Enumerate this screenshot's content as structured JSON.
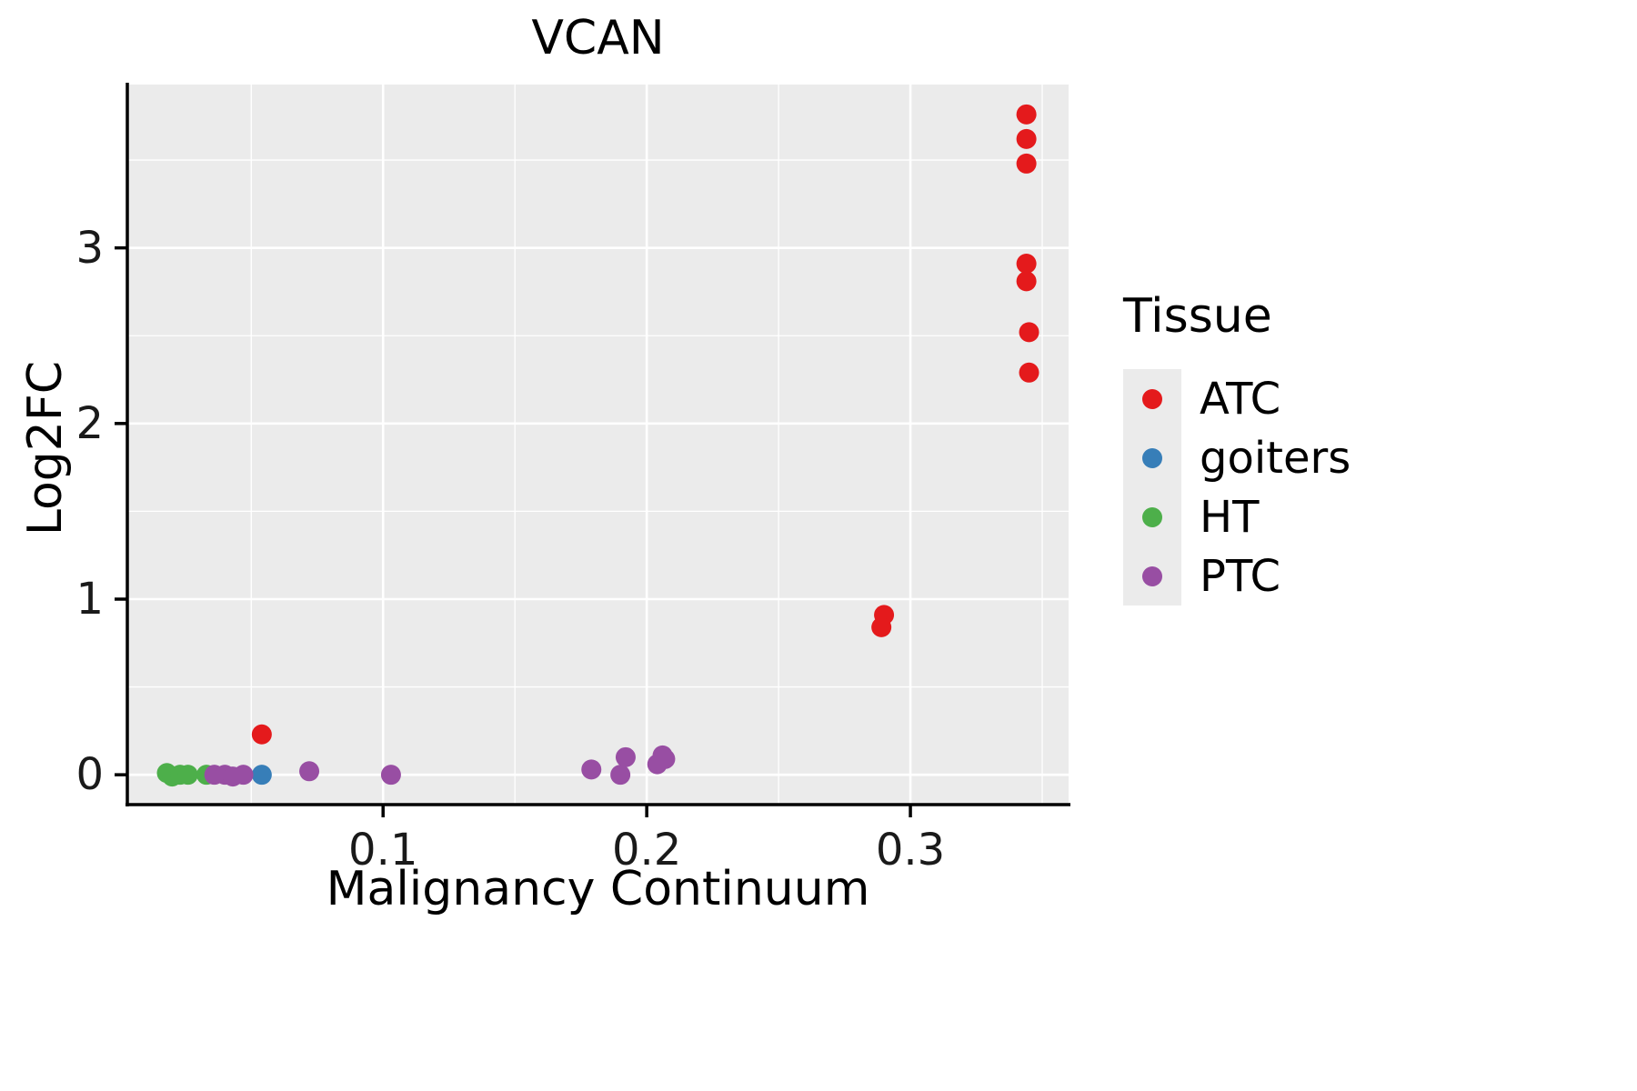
{
  "figure": {
    "title": "VCAN",
    "x_label": "Malignancy Continuum",
    "y_label": "Log2FC"
  },
  "legend": {
    "title": "Tissue",
    "key_background": "#EBEBEB",
    "entries": [
      {
        "label": "ATC",
        "color": "#E41A1C"
      },
      {
        "label": "goiters",
        "color": "#377EB8"
      },
      {
        "label": "HT",
        "color": "#4DAF4A"
      },
      {
        "label": "PTC",
        "color": "#984EA3"
      }
    ]
  },
  "chart_data": {
    "type": "scatter",
    "title": "VCAN",
    "xlabel": "Malignancy Continuum",
    "ylabel": "Log2FC",
    "xlim": [
      0.003,
      0.36
    ],
    "ylim": [
      -0.17,
      3.93
    ],
    "x_ticks": [
      0.1,
      0.2,
      0.3
    ],
    "x_minor_ticks": [
      0.05,
      0.15,
      0.25,
      0.35
    ],
    "y_ticks": [
      0,
      1,
      2,
      3
    ],
    "y_minor_ticks": [
      0.5,
      1.5,
      2.5,
      3.5
    ],
    "panel_background": "#EBEBEB",
    "grid_color": "#FFFFFF",
    "axis_color": "#000000",
    "point_radius": 11,
    "legend_position": "right",
    "grid": true,
    "series": [
      {
        "name": "ATC",
        "color": "#E41A1C",
        "points": [
          [
            0.344,
            3.76
          ],
          [
            0.344,
            3.62
          ],
          [
            0.344,
            3.48
          ],
          [
            0.344,
            2.91
          ],
          [
            0.344,
            2.81
          ],
          [
            0.345,
            2.52
          ],
          [
            0.345,
            2.29
          ],
          [
            0.29,
            0.91
          ],
          [
            0.289,
            0.84
          ],
          [
            0.054,
            0.23
          ]
        ]
      },
      {
        "name": "goiters",
        "color": "#377EB8",
        "points": [
          [
            0.054,
            0.0
          ]
        ]
      },
      {
        "name": "HT",
        "color": "#4DAF4A",
        "points": [
          [
            0.018,
            0.01
          ],
          [
            0.02,
            -0.01
          ],
          [
            0.023,
            0.0
          ],
          [
            0.026,
            0.0
          ],
          [
            0.033,
            0.0
          ]
        ]
      },
      {
        "name": "PTC",
        "color": "#984EA3",
        "points": [
          [
            0.036,
            0.0
          ],
          [
            0.04,
            0.0
          ],
          [
            0.043,
            -0.01
          ],
          [
            0.047,
            0.0
          ],
          [
            0.072,
            0.02
          ],
          [
            0.103,
            0.0
          ],
          [
            0.179,
            0.03
          ],
          [
            0.19,
            0.0
          ],
          [
            0.192,
            0.1
          ],
          [
            0.204,
            0.06
          ],
          [
            0.206,
            0.11
          ],
          [
            0.207,
            0.09
          ]
        ]
      }
    ]
  }
}
